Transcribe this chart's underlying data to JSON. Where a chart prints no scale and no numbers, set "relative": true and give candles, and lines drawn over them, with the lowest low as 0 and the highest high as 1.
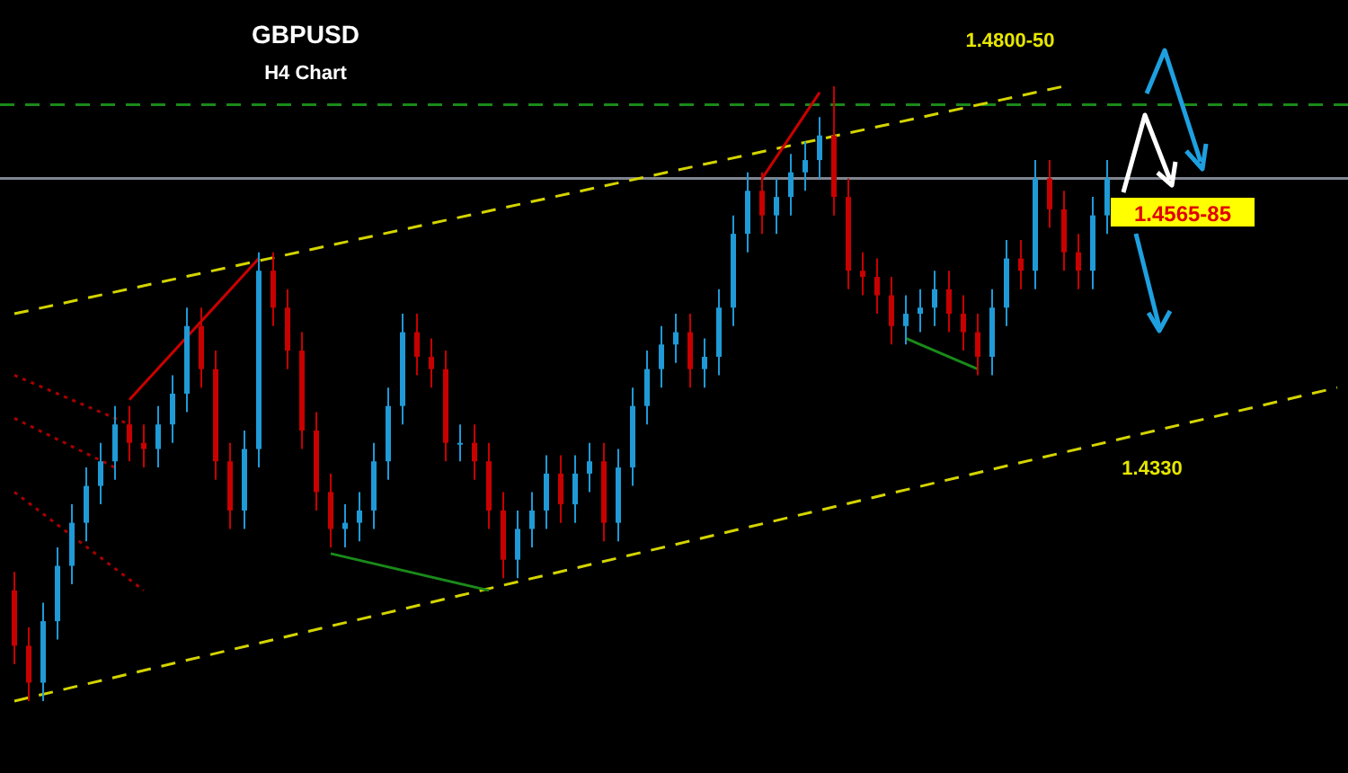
{
  "chart_data": {
    "type": "candlestick",
    "title": "GBPUSD",
    "subtitle": "H4 Chart",
    "relative": true,
    "categories": [
      null,
      null,
      null,
      null,
      null,
      null,
      null,
      null,
      null,
      null,
      null,
      null,
      null,
      null,
      null,
      null,
      null,
      null,
      null,
      null,
      null,
      null,
      null,
      null,
      null,
      null,
      null,
      null,
      null,
      null,
      null,
      null,
      null,
      null,
      null,
      null,
      null,
      null,
      null,
      null,
      null,
      null,
      null,
      null,
      null,
      null,
      null,
      null,
      null,
      null,
      null,
      null,
      null,
      null,
      null,
      null,
      null,
      null,
      null,
      null,
      null,
      null,
      null,
      null,
      null,
      null,
      null,
      null,
      null,
      null,
      null,
      null,
      null,
      null,
      null,
      null,
      null,
      null,
      null,
      null,
      null,
      null,
      null,
      null,
      null,
      null,
      null,
      null,
      null,
      null,
      null,
      null,
      null
    ],
    "ohlc": [
      [
        0.18,
        0.21,
        0.06,
        0.09
      ],
      [
        0.09,
        0.12,
        0,
        0.03
      ],
      [
        0.03,
        0.16,
        0,
        0.13
      ],
      [
        0.13,
        0.25,
        0.1,
        0.22
      ],
      [
        0.22,
        0.32,
        0.19,
        0.29
      ],
      [
        0.29,
        0.38,
        0.26,
        0.35
      ],
      [
        0.35,
        0.42,
        0.32,
        0.39
      ],
      [
        0.39,
        0.48,
        0.36,
        0.45
      ],
      [
        0.45,
        0.48,
        0.39,
        0.42
      ],
      [
        0.42,
        0.45,
        0.38,
        0.41
      ],
      [
        0.41,
        0.48,
        0.38,
        0.45
      ],
      [
        0.45,
        0.53,
        0.42,
        0.5
      ],
      [
        0.5,
        0.64,
        0.47,
        0.61
      ],
      [
        0.61,
        0.64,
        0.51,
        0.54
      ],
      [
        0.54,
        0.57,
        0.36,
        0.39
      ],
      [
        0.39,
        0.42,
        0.28,
        0.31
      ],
      [
        0.31,
        0.44,
        0.28,
        0.41
      ],
      [
        0.41,
        0.73,
        0.38,
        0.7
      ],
      [
        0.7,
        0.73,
        0.61,
        0.64
      ],
      [
        0.64,
        0.67,
        0.54,
        0.57
      ],
      [
        0.57,
        0.6,
        0.41,
        0.44
      ],
      [
        0.44,
        0.47,
        0.31,
        0.34
      ],
      [
        0.34,
        0.37,
        0.25,
        0.28
      ],
      [
        0.28,
        0.32,
        0.25,
        0.29
      ],
      [
        0.29,
        0.34,
        0.26,
        0.31
      ],
      [
        0.31,
        0.42,
        0.28,
        0.39
      ],
      [
        0.39,
        0.51,
        0.36,
        0.48
      ],
      [
        0.48,
        0.63,
        0.45,
        0.6
      ],
      [
        0.6,
        0.63,
        0.53,
        0.56
      ],
      [
        0.56,
        0.59,
        0.51,
        0.54
      ],
      [
        0.54,
        0.57,
        0.39,
        0.42
      ],
      [
        0.42,
        0.45,
        0.39,
        0.42
      ],
      [
        0.42,
        0.45,
        0.36,
        0.39
      ],
      [
        0.39,
        0.42,
        0.28,
        0.31
      ],
      [
        0.31,
        0.34,
        0.2,
        0.23
      ],
      [
        0.23,
        0.31,
        0.2,
        0.28
      ],
      [
        0.28,
        0.34,
        0.25,
        0.31
      ],
      [
        0.31,
        0.4,
        0.28,
        0.37
      ],
      [
        0.37,
        0.4,
        0.29,
        0.32
      ],
      [
        0.32,
        0.4,
        0.29,
        0.37
      ],
      [
        0.37,
        0.42,
        0.34,
        0.39
      ],
      [
        0.39,
        0.42,
        0.26,
        0.29
      ],
      [
        0.29,
        0.41,
        0.26,
        0.38
      ],
      [
        0.38,
        0.51,
        0.35,
        0.48
      ],
      [
        0.48,
        0.57,
        0.45,
        0.54
      ],
      [
        0.54,
        0.61,
        0.51,
        0.58
      ],
      [
        0.58,
        0.63,
        0.55,
        0.6
      ],
      [
        0.6,
        0.63,
        0.51,
        0.54
      ],
      [
        0.54,
        0.59,
        0.51,
        0.56
      ],
      [
        0.56,
        0.67,
        0.53,
        0.64
      ],
      [
        0.64,
        0.79,
        0.61,
        0.76
      ],
      [
        0.76,
        0.86,
        0.73,
        0.83
      ],
      [
        0.83,
        0.86,
        0.76,
        0.79
      ],
      [
        0.79,
        0.85,
        0.76,
        0.82
      ],
      [
        0.82,
        0.89,
        0.79,
        0.86
      ],
      [
        0.86,
        0.91,
        0.83,
        0.88
      ],
      [
        0.88,
        0.95,
        0.85,
        0.92
      ],
      [
        0.92,
        1,
        0.79,
        0.82
      ],
      [
        0.82,
        0.85,
        0.67,
        0.7
      ],
      [
        0.7,
        0.73,
        0.66,
        0.69
      ],
      [
        0.69,
        0.72,
        0.63,
        0.66
      ],
      [
        0.66,
        0.69,
        0.58,
        0.61
      ],
      [
        0.61,
        0.66,
        0.58,
        0.63
      ],
      [
        0.63,
        0.67,
        0.6,
        0.64
      ],
      [
        0.64,
        0.7,
        0.61,
        0.67
      ],
      [
        0.67,
        0.7,
        0.6,
        0.63
      ],
      [
        0.63,
        0.66,
        0.57,
        0.6
      ],
      [
        0.6,
        0.63,
        0.53,
        0.56
      ],
      [
        0.56,
        0.67,
        0.53,
        0.64
      ],
      [
        0.64,
        0.75,
        0.61,
        0.72
      ],
      [
        0.72,
        0.75,
        0.67,
        0.7
      ],
      [
        0.7,
        0.88,
        0.67,
        0.85
      ],
      [
        0.85,
        0.88,
        0.77,
        0.8
      ],
      [
        0.8,
        0.83,
        0.7,
        0.73
      ],
      [
        0.73,
        0.76,
        0.67,
        0.7
      ],
      [
        0.7,
        0.82,
        0.67,
        0.79
      ],
      [
        0.79,
        0.88,
        0.76,
        0.85
      ],
      null,
      null,
      null,
      null,
      null,
      null,
      null,
      null,
      null,
      null,
      null,
      null,
      null,
      null,
      null,
      null
    ],
    "series": [
      {
        "type": "line",
        "color": "#d4d400",
        "line_style": "dashed",
        "values": [
          0.63,
          null,
          null,
          null,
          null,
          null,
          null,
          null,
          null,
          null,
          null,
          null,
          null,
          null,
          null,
          null,
          null,
          null,
          null,
          null,
          null,
          null,
          null,
          null,
          null,
          null,
          null,
          null,
          null,
          null,
          null,
          null,
          null,
          null,
          null,
          null,
          null,
          null,
          null,
          null,
          null,
          null,
          null,
          null,
          null,
          null,
          null,
          null,
          null,
          null,
          null,
          null,
          null,
          null,
          null,
          null,
          null,
          null,
          null,
          null,
          null,
          null,
          null,
          null,
          null,
          null,
          null,
          null,
          null,
          null,
          null,
          null,
          null,
          1.0,
          null,
          null,
          null,
          null,
          null,
          null,
          null,
          null,
          null,
          null,
          null,
          null,
          null,
          null,
          null,
          null,
          null,
          null,
          null
        ]
      },
      {
        "type": "line",
        "color": "#d4d400",
        "line_style": "dashed",
        "values": [
          0,
          null,
          null,
          null,
          null,
          null,
          null,
          null,
          null,
          null,
          null,
          null,
          null,
          null,
          null,
          null,
          null,
          null,
          null,
          null,
          null,
          null,
          null,
          null,
          null,
          null,
          null,
          null,
          null,
          null,
          null,
          null,
          null,
          null,
          null,
          null,
          null,
          null,
          null,
          null,
          null,
          null,
          null,
          null,
          null,
          null,
          null,
          null,
          null,
          null,
          null,
          null,
          null,
          null,
          null,
          null,
          null,
          null,
          null,
          null,
          null,
          null,
          null,
          null,
          null,
          null,
          null,
          null,
          null,
          null,
          null,
          null,
          null,
          null,
          null,
          null,
          null,
          null,
          null,
          null,
          null,
          null,
          null,
          null,
          null,
          null,
          null,
          null,
          null,
          null,
          null,
          null,
          0.51
        ]
      },
      {
        "type": "line",
        "color": "#cc0000",
        "line_style": "solid",
        "values": [
          null,
          null,
          null,
          null,
          null,
          null,
          null,
          null,
          0.49,
          null,
          null,
          null,
          null,
          null,
          null,
          null,
          null,
          0.72,
          null,
          null,
          null,
          null,
          null,
          null,
          null,
          null,
          null,
          null,
          null,
          null,
          null,
          null,
          null,
          null,
          null,
          null,
          null,
          null,
          null,
          null,
          null,
          null,
          null,
          null,
          null,
          null,
          null,
          null,
          null,
          null,
          null,
          null,
          null,
          null,
          null,
          null,
          null,
          null,
          null,
          null,
          null,
          null,
          null,
          null,
          null,
          null,
          null,
          null,
          null,
          null,
          null,
          null,
          null,
          null,
          null,
          null,
          null,
          null,
          null,
          null,
          null,
          null,
          null,
          null,
          null,
          null,
          null,
          null,
          null,
          null,
          null,
          null,
          null
        ]
      },
      {
        "type": "line",
        "color": "#cc0000",
        "line_style": "solid",
        "values": [
          null,
          null,
          null,
          null,
          null,
          null,
          null,
          null,
          null,
          null,
          null,
          null,
          null,
          null,
          null,
          null,
          null,
          null,
          null,
          null,
          null,
          null,
          null,
          null,
          null,
          null,
          null,
          null,
          null,
          null,
          null,
          null,
          null,
          null,
          null,
          null,
          null,
          null,
          null,
          null,
          null,
          null,
          null,
          null,
          null,
          null,
          null,
          null,
          null,
          null,
          null,
          null,
          0.85,
          null,
          null,
          null,
          0.99,
          null,
          null,
          null,
          null,
          null,
          null,
          null,
          null,
          null,
          null,
          null,
          null,
          null,
          null,
          null,
          null,
          null,
          null,
          null,
          null,
          null,
          null,
          null,
          null,
          null,
          null,
          null,
          null,
          null,
          null,
          null,
          null,
          null,
          null,
          null,
          null
        ]
      },
      {
        "type": "line",
        "color": "#1a8a1a",
        "line_style": "solid",
        "values": [
          null,
          null,
          null,
          null,
          null,
          null,
          null,
          null,
          null,
          null,
          null,
          null,
          null,
          null,
          null,
          null,
          null,
          null,
          null,
          null,
          null,
          null,
          0.24,
          null,
          null,
          null,
          null,
          null,
          null,
          null,
          null,
          null,
          null,
          0.18,
          null,
          null,
          null,
          null,
          null,
          null,
          null,
          null,
          null,
          null,
          null,
          null,
          null,
          null,
          null,
          null,
          null,
          null,
          null,
          null,
          null,
          null,
          null,
          null,
          null,
          null,
          null,
          null,
          null,
          null,
          null,
          null,
          null,
          null,
          null,
          null,
          null,
          null,
          null,
          null,
          null,
          null,
          null,
          null,
          null,
          null,
          null,
          null,
          null,
          null,
          null,
          null,
          null,
          null,
          null,
          null,
          null,
          null,
          null
        ]
      },
      {
        "type": "line",
        "color": "#1a8a1a",
        "line_style": "solid",
        "values": [
          null,
          null,
          null,
          null,
          null,
          null,
          null,
          null,
          null,
          null,
          null,
          null,
          null,
          null,
          null,
          null,
          null,
          null,
          null,
          null,
          null,
          null,
          null,
          null,
          null,
          null,
          null,
          null,
          null,
          null,
          null,
          null,
          null,
          null,
          null,
          null,
          null,
          null,
          null,
          null,
          null,
          null,
          null,
          null,
          null,
          null,
          null,
          null,
          null,
          null,
          null,
          null,
          null,
          null,
          null,
          null,
          null,
          null,
          null,
          null,
          null,
          null,
          0.59,
          null,
          null,
          null,
          null,
          0.54,
          null,
          null,
          null,
          null,
          null,
          null,
          null,
          null,
          null,
          null,
          null,
          null,
          null,
          null,
          null,
          null,
          null,
          null,
          null,
          null,
          null,
          null,
          null,
          null,
          null
        ]
      },
      {
        "type": "line",
        "color": "#aa0000",
        "line_style": "dotted",
        "values": [
          0.53,
          null,
          null,
          null,
          null,
          null,
          null,
          null,
          0.45,
          null,
          null,
          null,
          null,
          null,
          null,
          null,
          null,
          null,
          null,
          null,
          null,
          null,
          null,
          null,
          null,
          null,
          null,
          null,
          null,
          null,
          null,
          null,
          null,
          null,
          null,
          null,
          null,
          null,
          null,
          null,
          null,
          null,
          null,
          null,
          null,
          null,
          null,
          null,
          null,
          null,
          null,
          null,
          null,
          null,
          null,
          null,
          null,
          null,
          null,
          null,
          null,
          null,
          null,
          null,
          null,
          null,
          null,
          null,
          null,
          null,
          null,
          null,
          null,
          null,
          null,
          null,
          null,
          null,
          null,
          null,
          null,
          null,
          null,
          null,
          null,
          null,
          null,
          null,
          null,
          null,
          null,
          null,
          null
        ]
      },
      {
        "type": "line",
        "color": "#aa0000",
        "line_style": "dotted",
        "values": [
          0.46,
          null,
          null,
          null,
          null,
          null,
          null,
          0.38,
          null,
          null,
          null,
          null,
          null,
          null,
          null,
          null,
          null,
          null,
          null,
          null,
          null,
          null,
          null,
          null,
          null,
          null,
          null,
          null,
          null,
          null,
          null,
          null,
          null,
          null,
          null,
          null,
          null,
          null,
          null,
          null,
          null,
          null,
          null,
          null,
          null,
          null,
          null,
          null,
          null,
          null,
          null,
          null,
          null,
          null,
          null,
          null,
          null,
          null,
          null,
          null,
          null,
          null,
          null,
          null,
          null,
          null,
          null,
          null,
          null,
          null,
          null,
          null,
          null,
          null,
          null,
          null,
          null,
          null,
          null,
          null,
          null,
          null,
          null,
          null,
          null,
          null,
          null,
          null,
          null,
          null,
          null,
          null,
          null
        ]
      },
      {
        "type": "line",
        "color": "#aa0000",
        "line_style": "dotted",
        "values": [
          0.34,
          null,
          null,
          null,
          null,
          null,
          null,
          null,
          null,
          0.18,
          null,
          null,
          null,
          null,
          null,
          null,
          null,
          null,
          null,
          null,
          null,
          null,
          null,
          null,
          null,
          null,
          null,
          null,
          null,
          null,
          null,
          null,
          null,
          null,
          null,
          null,
          null,
          null,
          null,
          null,
          null,
          null,
          null,
          null,
          null,
          null,
          null,
          null,
          null,
          null,
          null,
          null,
          null,
          null,
          null,
          null,
          null,
          null,
          null,
          null,
          null,
          null,
          null,
          null,
          null,
          null,
          null,
          null,
          null,
          null,
          null,
          null,
          null,
          null,
          null,
          null,
          null,
          null,
          null,
          null,
          null,
          null,
          null,
          null,
          null,
          null,
          null,
          null,
          null,
          null,
          null,
          null,
          null
        ]
      }
    ],
    "ref_lines": [
      {
        "axis": "y",
        "value": 0.85,
        "color": "#7f8590",
        "line_style": "solid"
      },
      {
        "axis": "y",
        "value": 0.97,
        "color": "#1a8a1a",
        "line_style": "dashed"
      }
    ],
    "annotations": [
      "1.4800-50",
      "1.4565-85",
      "1.4330"
    ]
  }
}
